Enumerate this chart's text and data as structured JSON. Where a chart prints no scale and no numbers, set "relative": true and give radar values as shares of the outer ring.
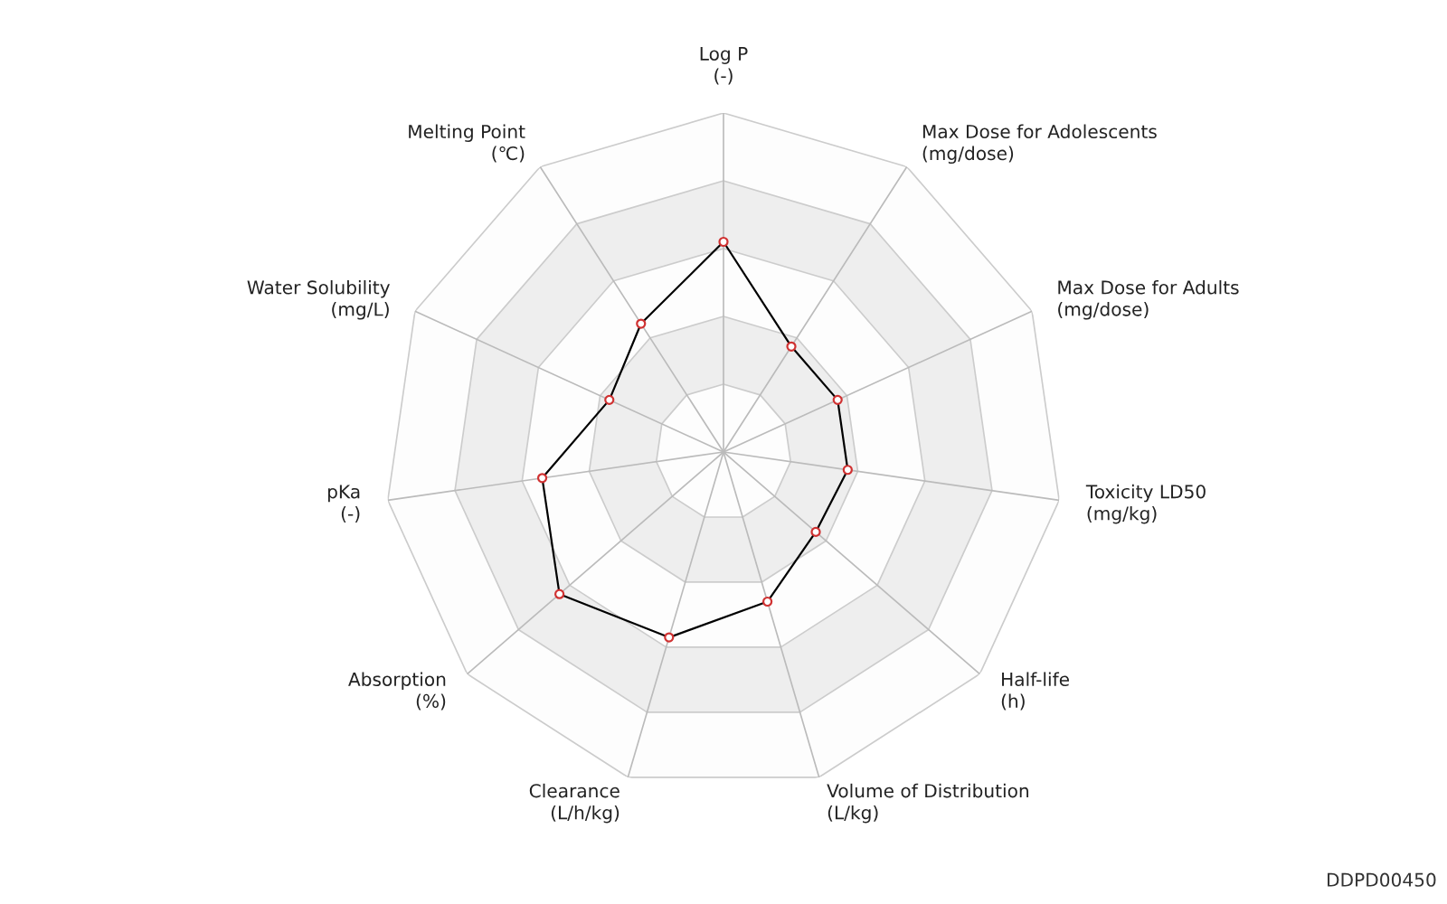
{
  "chart_data": {
    "type": "radar",
    "relative": true,
    "grid": true,
    "marker": "circle",
    "line_style": "solid",
    "categories": [
      "Log P\n(-)",
      "Max Dose for Adolescents\n(mg/dose)",
      "Max Dose for Adults\n(mg/dose)",
      "Toxicity LD50\n(mg/kg)",
      "Half-life\n(h)",
      "Volume of Distribution\n(L/kg)",
      "Clearance\n(L/h/kg)",
      "Absorption\n(%)",
      "pKa\n(-)",
      "Water Solubility\n(mg/L)",
      "Melting Point\n(℃)"
    ],
    "series": [
      {
        "color": "#000000",
        "colors": [
          "#d03232",
          "#d03232",
          "#d03232",
          "#d03232",
          "#d03232",
          "#d03232",
          "#d03232",
          "#d03232",
          "#d03232",
          "#d03232",
          "#d03232"
        ],
        "values": [
          0.62,
          0.37,
          0.37,
          0.37,
          0.36,
          0.46,
          0.57,
          0.64,
          0.54,
          0.37,
          0.45
        ]
      }
    ],
    "annotations": [
      "DDPD00450"
    ]
  }
}
